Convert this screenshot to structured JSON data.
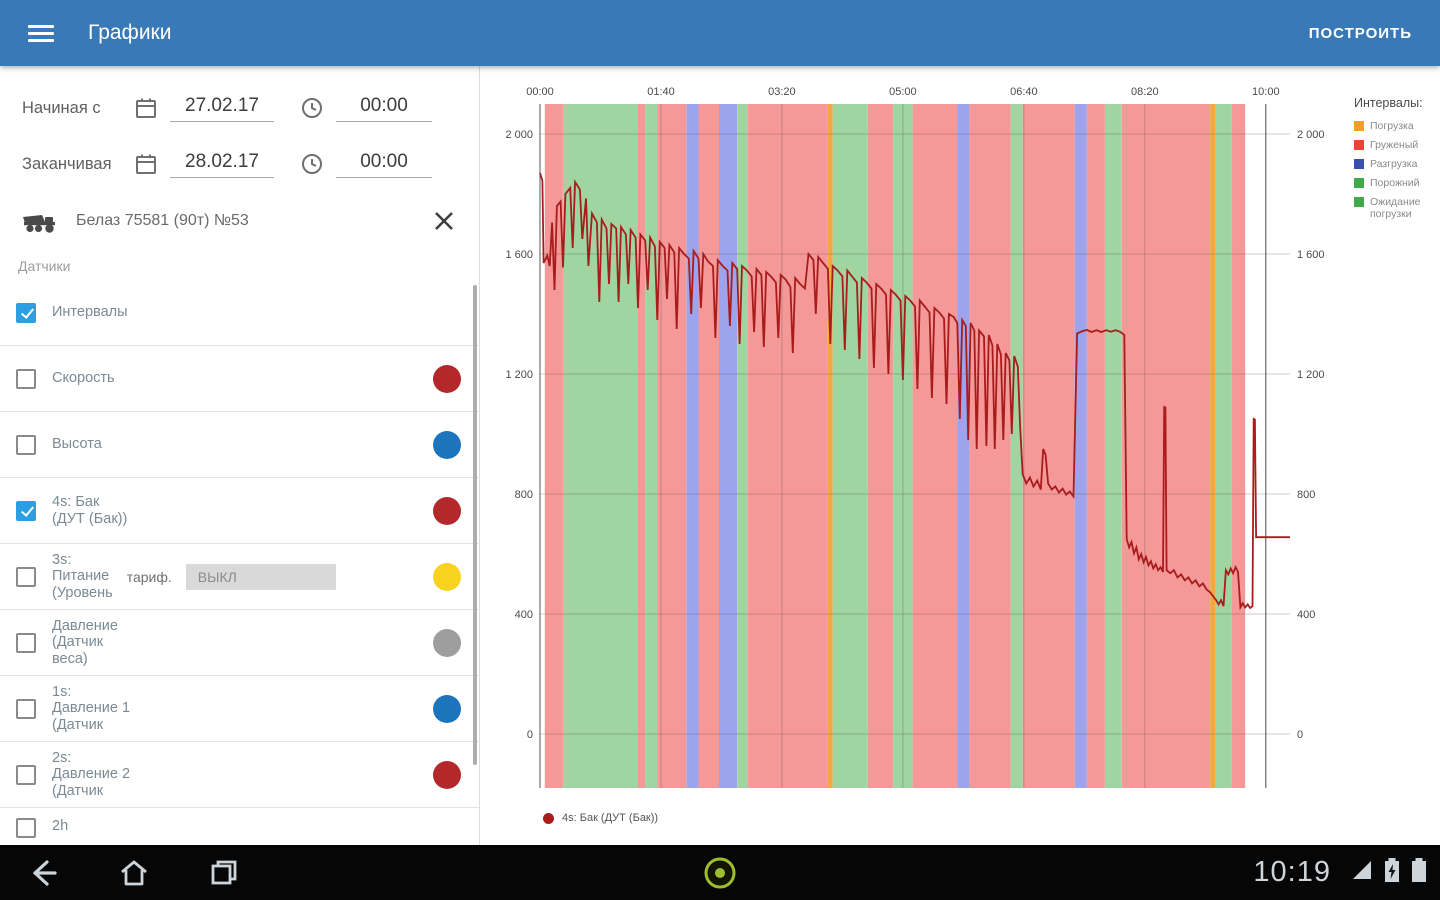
{
  "appbar": {
    "title": "Графики",
    "action": "ПОСТРОИТЬ"
  },
  "filters": {
    "start_label": "Начиная с",
    "start_date": "27.02.17",
    "start_time": "00:00",
    "end_label": "Заканчивая",
    "end_date": "28.02.17",
    "end_time": "00:00",
    "vehicle": "Белаз 75581 (90т) №53",
    "sensors_title": "Датчики"
  },
  "sensors": [
    {
      "lines": [
        "Интервалы"
      ],
      "checked": true,
      "color": null
    },
    {
      "lines": [
        "Скорость"
      ],
      "checked": false,
      "color": "#b4282b"
    },
    {
      "lines": [
        "Высота"
      ],
      "checked": false,
      "color": "#1c75bc"
    },
    {
      "lines": [
        "4s: Бак",
        "(ДУТ (Бак))"
      ],
      "checked": true,
      "color": "#b4282b"
    },
    {
      "lines": [
        "3s:",
        "Питание",
        "(Уровень"
      ],
      "checked": false,
      "color": "#f7d21e",
      "extra_label": "тариф.",
      "button": "ВЫКЛ"
    },
    {
      "lines": [
        "Давление",
        "(Датчик",
        "веса)"
      ],
      "checked": false,
      "color": "#9e9e9e"
    },
    {
      "lines": [
        "1s:",
        "Давление 1",
        "(Датчик"
      ],
      "checked": false,
      "color": "#1c75bc"
    },
    {
      "lines": [
        "2s:",
        "Давление 2",
        "(Датчик"
      ],
      "checked": false,
      "color": "#b4282b"
    },
    {
      "lines": [
        "2h"
      ],
      "checked": false,
      "color": null,
      "partial": true
    }
  ],
  "interval_legend": {
    "title": "Интервалы:",
    "items": [
      {
        "label": "Погрузка",
        "color": "#f0a124"
      },
      {
        "label": "Груженый",
        "color": "#ef4136"
      },
      {
        "label": "Разгрузка",
        "color": "#3a4fb4"
      },
      {
        "label": "Порожний",
        "color": "#3faa49"
      },
      {
        "label": "Ожидание погрузки",
        "color": "#3faa49"
      }
    ]
  },
  "series_legend": {
    "label": "4s: Бак (ДУТ (Бак))",
    "color": "#a81c1c"
  },
  "navbar": {
    "time": "10:19"
  },
  "chart_data": {
    "type": "line",
    "title": "",
    "xlabel": "",
    "ylabel": "",
    "x_ticks": [
      "00:00",
      "01:40",
      "03:20",
      "05:00",
      "06:40",
      "08:20",
      "10:00"
    ],
    "x_tick_minutes": [
      0,
      100,
      200,
      300,
      400,
      500,
      600
    ],
    "x_max_minutes": 620,
    "ylim": [
      0,
      2000
    ],
    "y_ticks": [
      {
        "v": 0,
        "label": "0"
      },
      {
        "v": 400,
        "label": "400"
      },
      {
        "v": 800,
        "label": "800"
      },
      {
        "v": 1200,
        "label": "1 200"
      },
      {
        "v": 1600,
        "label": "1 600"
      },
      {
        "v": 2000,
        "label": "2 000"
      }
    ],
    "grid": true,
    "band_colors": {
      "red": "#f59898",
      "green": "#a0d4a0",
      "blue": "#9da4ed",
      "orange": "#f2aa3c"
    },
    "bands": [
      [
        4,
        19,
        "red"
      ],
      [
        19,
        81,
        "green"
      ],
      [
        81,
        87,
        "red"
      ],
      [
        87,
        97,
        "green"
      ],
      [
        97,
        121,
        "red"
      ],
      [
        121,
        131,
        "blue"
      ],
      [
        131,
        148,
        "red"
      ],
      [
        148,
        163,
        "blue"
      ],
      [
        163,
        172,
        "green"
      ],
      [
        172,
        238,
        "red"
      ],
      [
        238,
        242,
        "orange"
      ],
      [
        242,
        271,
        "green"
      ],
      [
        271,
        292,
        "red"
      ],
      [
        292,
        308,
        "green"
      ],
      [
        308,
        345,
        "red"
      ],
      [
        345,
        355,
        "blue"
      ],
      [
        355,
        389,
        "red"
      ],
      [
        389,
        399,
        "green"
      ],
      [
        399,
        442,
        "red"
      ],
      [
        442,
        452,
        "blue"
      ],
      [
        452,
        467,
        "red"
      ],
      [
        467,
        481,
        "green"
      ],
      [
        481,
        554,
        "red"
      ],
      [
        554,
        558,
        "orange"
      ],
      [
        558,
        572,
        "green"
      ],
      [
        572,
        583,
        "red"
      ]
    ],
    "series": [
      {
        "name": "4s: Бак (ДУТ (Бак))",
        "color": "#a81c1c",
        "points": [
          [
            0,
            1870
          ],
          [
            2,
            1845
          ],
          [
            3,
            1570
          ],
          [
            6,
            1595
          ],
          [
            8,
            1560
          ],
          [
            10,
            1705
          ],
          [
            12,
            1480
          ],
          [
            14,
            1760
          ],
          [
            17,
            1775
          ],
          [
            19,
            1555
          ],
          [
            21,
            1800
          ],
          [
            25,
            1820
          ],
          [
            27,
            1620
          ],
          [
            29,
            1840
          ],
          [
            33,
            1815
          ],
          [
            35,
            1650
          ],
          [
            38,
            1785
          ],
          [
            40,
            1560
          ],
          [
            43,
            1735
          ],
          [
            47,
            1705
          ],
          [
            49,
            1440
          ],
          [
            51,
            1715
          ],
          [
            55,
            1685
          ],
          [
            57,
            1500
          ],
          [
            59,
            1700
          ],
          [
            63,
            1685
          ],
          [
            65,
            1440
          ],
          [
            67,
            1690
          ],
          [
            71,
            1665
          ],
          [
            73,
            1500
          ],
          [
            75,
            1680
          ],
          [
            79,
            1655
          ],
          [
            81,
            1420
          ],
          [
            83,
            1665
          ],
          [
            87,
            1645
          ],
          [
            89,
            1480
          ],
          [
            91,
            1655
          ],
          [
            95,
            1625
          ],
          [
            97,
            1380
          ],
          [
            99,
            1640
          ],
          [
            103,
            1620
          ],
          [
            105,
            1450
          ],
          [
            107,
            1630
          ],
          [
            111,
            1605
          ],
          [
            113,
            1350
          ],
          [
            115,
            1620
          ],
          [
            119,
            1600
          ],
          [
            123,
            1585
          ],
          [
            125,
            1400
          ],
          [
            127,
            1610
          ],
          [
            131,
            1585
          ],
          [
            133,
            1420
          ],
          [
            135,
            1600
          ],
          [
            139,
            1575
          ],
          [
            143,
            1560
          ],
          [
            145,
            1320
          ],
          [
            147,
            1580
          ],
          [
            151,
            1560
          ],
          [
            155,
            1545
          ],
          [
            157,
            1360
          ],
          [
            159,
            1570
          ],
          [
            163,
            1550
          ],
          [
            165,
            1300
          ],
          [
            167,
            1560
          ],
          [
            171,
            1545
          ],
          [
            175,
            1525
          ],
          [
            177,
            1340
          ],
          [
            179,
            1550
          ],
          [
            183,
            1530
          ],
          [
            185,
            1290
          ],
          [
            187,
            1540
          ],
          [
            191,
            1525
          ],
          [
            195,
            1505
          ],
          [
            197,
            1320
          ],
          [
            199,
            1530
          ],
          [
            203,
            1515
          ],
          [
            207,
            1490
          ],
          [
            209,
            1270
          ],
          [
            211,
            1520
          ],
          [
            215,
            1500
          ],
          [
            219,
            1485
          ],
          [
            222,
            1600
          ],
          [
            226,
            1580
          ],
          [
            228,
            1400
          ],
          [
            230,
            1590
          ],
          [
            234,
            1570
          ],
          [
            238,
            1550
          ],
          [
            240,
            1300
          ],
          [
            242,
            1560
          ],
          [
            246,
            1545
          ],
          [
            250,
            1525
          ],
          [
            252,
            1280
          ],
          [
            254,
            1545
          ],
          [
            258,
            1525
          ],
          [
            262,
            1505
          ],
          [
            264,
            1250
          ],
          [
            266,
            1520
          ],
          [
            270,
            1505
          ],
          [
            274,
            1485
          ],
          [
            276,
            1220
          ],
          [
            278,
            1500
          ],
          [
            282,
            1485
          ],
          [
            286,
            1465
          ],
          [
            288,
            1200
          ],
          [
            290,
            1480
          ],
          [
            294,
            1465
          ],
          [
            298,
            1445
          ],
          [
            300,
            1180
          ],
          [
            302,
            1460
          ],
          [
            306,
            1445
          ],
          [
            310,
            1425
          ],
          [
            312,
            1150
          ],
          [
            314,
            1445
          ],
          [
            318,
            1425
          ],
          [
            322,
            1405
          ],
          [
            324,
            1120
          ],
          [
            326,
            1420
          ],
          [
            330,
            1405
          ],
          [
            334,
            1385
          ],
          [
            336,
            1100
          ],
          [
            338,
            1400
          ],
          [
            342,
            1390
          ],
          [
            345,
            1370
          ],
          [
            347,
            1050
          ],
          [
            349,
            1380
          ],
          [
            352,
            1360
          ],
          [
            354,
            980
          ],
          [
            356,
            1370
          ],
          [
            359,
            1345
          ],
          [
            361,
            950
          ],
          [
            363,
            1345
          ],
          [
            367,
            1325
          ],
          [
            369,
            960
          ],
          [
            371,
            1330
          ],
          [
            374,
            1295
          ],
          [
            376,
            950
          ],
          [
            378,
            1300
          ],
          [
            381,
            1265
          ],
          [
            383,
            980
          ],
          [
            385,
            1270
          ],
          [
            388,
            1245
          ],
          [
            390,
            1000
          ],
          [
            392,
            1260
          ],
          [
            395,
            1225
          ],
          [
            397,
            1020
          ],
          [
            399,
            865
          ],
          [
            402,
            835
          ],
          [
            405,
            855
          ],
          [
            408,
            825
          ],
          [
            411,
            845
          ],
          [
            414,
            815
          ],
          [
            416,
            950
          ],
          [
            418,
            930
          ],
          [
            420,
            835
          ],
          [
            423,
            815
          ],
          [
            426,
            825
          ],
          [
            429,
            805
          ],
          [
            432,
            818
          ],
          [
            435,
            798
          ],
          [
            438,
            808
          ],
          [
            441,
            792
          ],
          [
            444,
            1335
          ],
          [
            448,
            1342
          ],
          [
            452,
            1347
          ],
          [
            456,
            1340
          ],
          [
            460,
            1346
          ],
          [
            464,
            1340
          ],
          [
            468,
            1346
          ],
          [
            472,
            1341
          ],
          [
            476,
            1346
          ],
          [
            480,
            1340
          ],
          [
            483,
            1330
          ],
          [
            485,
            650
          ],
          [
            487,
            622
          ],
          [
            489,
            640
          ],
          [
            491,
            602
          ],
          [
            493,
            622
          ],
          [
            495,
            582
          ],
          [
            497,
            600
          ],
          [
            499,
            572
          ],
          [
            501,
            590
          ],
          [
            503,
            562
          ],
          [
            505,
            576
          ],
          [
            507,
            552
          ],
          [
            509,
            566
          ],
          [
            511,
            546
          ],
          [
            513,
            556
          ],
          [
            515,
            540
          ],
          [
            516,
            1090
          ],
          [
            517,
            1088
          ],
          [
            518,
            546
          ],
          [
            521,
            536
          ],
          [
            524,
            546
          ],
          [
            527,
            522
          ],
          [
            530,
            532
          ],
          [
            533,
            512
          ],
          [
            536,
            522
          ],
          [
            539,
            502
          ],
          [
            542,
            512
          ],
          [
            545,
            492
          ],
          [
            548,
            502
          ],
          [
            551,
            482
          ],
          [
            554,
            472
          ],
          [
            557,
            456
          ],
          [
            559,
            446
          ],
          [
            561,
            432
          ],
          [
            563,
            446
          ],
          [
            565,
            426
          ],
          [
            567,
            546
          ],
          [
            569,
            532
          ],
          [
            571,
            552
          ],
          [
            573,
            536
          ],
          [
            575,
            556
          ],
          [
            577,
            540
          ],
          [
            579,
            422
          ],
          [
            581,
            436
          ],
          [
            583,
            422
          ],
          [
            585,
            432
          ],
          [
            587,
            420
          ],
          [
            589,
            426
          ],
          [
            590,
            1050
          ],
          [
            591,
            1048
          ],
          [
            592,
            656
          ],
          [
            600,
            656
          ],
          [
            610,
            656
          ],
          [
            620,
            656
          ]
        ]
      }
    ]
  }
}
